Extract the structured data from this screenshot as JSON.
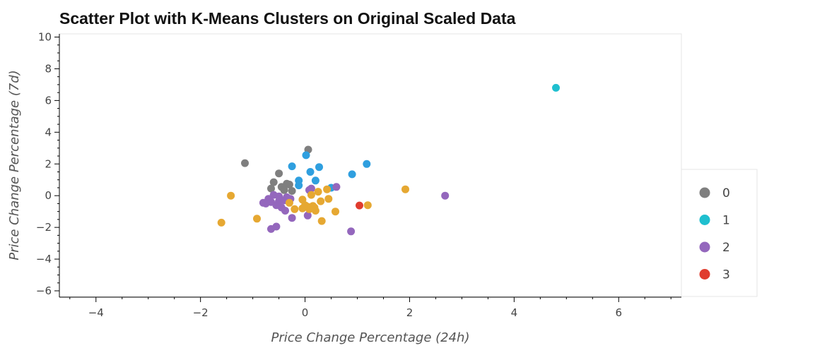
{
  "chart_data": {
    "type": "scatter",
    "title": "Scatter Plot with K-Means Clusters on Original Scaled Data",
    "xlabel": "Price Change Percentage (24h)",
    "ylabel": "Price Change Percentage (7d)",
    "xlim": [
      -4.7,
      7.2
    ],
    "ylim": [
      -6.4,
      10.2
    ],
    "x_ticks": [
      -4,
      -2,
      0,
      2,
      4,
      6
    ],
    "x_tick_labels": [
      "−4",
      "−2",
      "0",
      "2",
      "4",
      "6"
    ],
    "y_ticks": [
      -6,
      -4,
      -2,
      0,
      2,
      4,
      6,
      8,
      10
    ],
    "y_tick_labels": [
      "−6",
      "−4",
      "−2",
      "0",
      "2",
      "4",
      "6",
      "8",
      "10"
    ],
    "grid": false,
    "legend_position": "right",
    "series": [
      {
        "name": "0",
        "color": "#7f7f7f",
        "points": [
          [
            -1.15,
            2.05
          ],
          [
            0.06,
            2.9
          ],
          [
            -0.5,
            1.4
          ],
          [
            -0.6,
            0.85
          ],
          [
            -0.65,
            0.45
          ],
          [
            -0.45,
            0.55
          ],
          [
            -0.35,
            0.75
          ],
          [
            -0.3,
            0.7
          ],
          [
            -0.4,
            0.35
          ],
          [
            -0.25,
            0.3
          ]
        ]
      },
      {
        "name": "1",
        "color": "#1fbfcf",
        "points": [
          [
            4.8,
            6.8
          ]
        ]
      },
      {
        "name": "1",
        "color": "#2f9fdf",
        "points": [
          [
            0.02,
            2.55
          ],
          [
            -0.25,
            1.85
          ],
          [
            0.1,
            1.5
          ],
          [
            0.27,
            1.8
          ],
          [
            1.18,
            2.0
          ],
          [
            0.9,
            1.35
          ],
          [
            -0.12,
            0.95
          ],
          [
            -0.12,
            0.65
          ],
          [
            0.2,
            0.95
          ],
          [
            0.5,
            0.5
          ]
        ]
      },
      {
        "name": "2",
        "color": "#9467bd",
        "points": [
          [
            -0.6,
            0.05
          ],
          [
            -0.5,
            -0.05
          ],
          [
            -0.7,
            -0.2
          ],
          [
            -0.8,
            -0.45
          ],
          [
            -0.65,
            -0.4
          ],
          [
            -0.5,
            -0.35
          ],
          [
            -0.4,
            -0.3
          ],
          [
            -0.35,
            -0.1
          ],
          [
            -0.28,
            -0.2
          ],
          [
            -0.45,
            -0.75
          ],
          [
            -0.38,
            -0.95
          ],
          [
            -0.25,
            -1.4
          ],
          [
            -0.55,
            -1.95
          ],
          [
            -0.65,
            -2.1
          ],
          [
            0.08,
            0.35
          ],
          [
            0.12,
            0.45
          ],
          [
            0.6,
            0.55
          ],
          [
            0.05,
            -1.25
          ],
          [
            0.88,
            -2.25
          ],
          [
            2.68,
            0.0
          ],
          [
            -0.75,
            -0.5
          ],
          [
            -0.55,
            -0.6
          ]
        ]
      },
      {
        "name": "",
        "color": "#e6a832",
        "points": [
          [
            -1.42,
            0.0
          ],
          [
            -1.6,
            -1.7
          ],
          [
            -0.92,
            -1.45
          ],
          [
            -0.3,
            -0.45
          ],
          [
            -0.2,
            -0.85
          ],
          [
            -0.05,
            -0.25
          ],
          [
            0.0,
            -0.6
          ],
          [
            -0.05,
            -0.8
          ],
          [
            0.05,
            -0.7
          ],
          [
            0.15,
            -0.65
          ],
          [
            0.2,
            -0.95
          ],
          [
            0.25,
            0.25
          ],
          [
            0.3,
            -0.35
          ],
          [
            0.42,
            0.4
          ],
          [
            0.45,
            -0.2
          ],
          [
            0.58,
            -1.0
          ],
          [
            0.32,
            -1.6
          ],
          [
            1.2,
            -0.6
          ],
          [
            1.92,
            0.4
          ],
          [
            0.12,
            0.05
          ],
          [
            0.08,
            -0.85
          ],
          [
            0.18,
            -0.75
          ]
        ]
      },
      {
        "name": "3",
        "color": "#e03c2e",
        "points": [
          [
            1.04,
            -0.62
          ]
        ]
      }
    ],
    "legend": [
      {
        "label": "0",
        "color": "#7f7f7f"
      },
      {
        "label": "1",
        "color": "#1fbfcf"
      },
      {
        "label": "2",
        "color": "#9467bd"
      },
      {
        "label": "3",
        "color": "#e03c2e"
      }
    ]
  }
}
